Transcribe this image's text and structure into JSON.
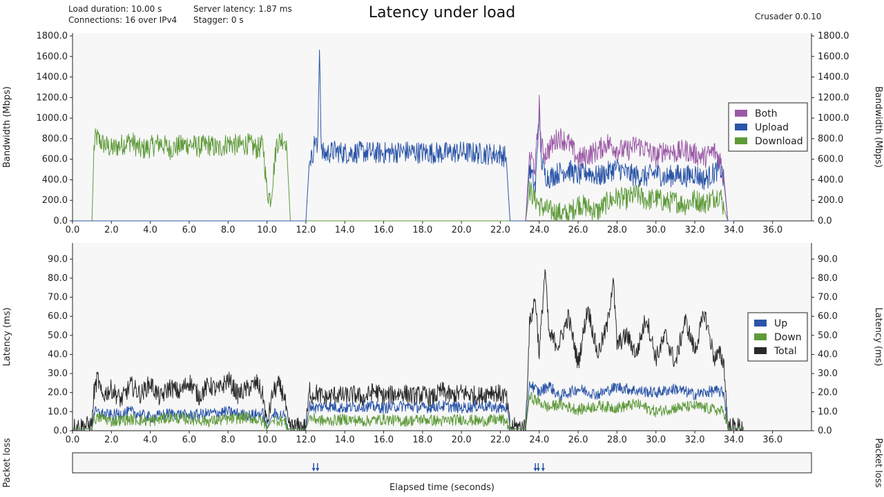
{
  "header": {
    "title": "Latency under load",
    "load_duration": "Load duration: 10.00 s",
    "connections": "Connections: 16 over IPv4",
    "server_latency": "Server latency: 1.87 ms",
    "stagger": "Stagger: 0 s",
    "version": "Crusader 0.0.10"
  },
  "colors": {
    "both": "#9b59a6",
    "upload": "#2b55a8",
    "download": "#5e9a3a",
    "total": "#2a2a2a",
    "plot_bg": "#f7f7f7"
  },
  "chart_data": [
    {
      "type": "line",
      "name": "bandwidth",
      "ylabel": "Bandwidth (Mbps)",
      "xlim": [
        0,
        38
      ],
      "ylim": [
        0,
        1800
      ],
      "x_ticks": [
        "0.0",
        "2.0",
        "4.0",
        "6.0",
        "8.0",
        "10.0",
        "12.0",
        "14.0",
        "16.0",
        "18.0",
        "20.0",
        "22.0",
        "24.0",
        "26.0",
        "28.0",
        "30.0",
        "32.0",
        "34.0",
        "36.0"
      ],
      "y_ticks": [
        "0.0",
        "200.0",
        "400.0",
        "600.0",
        "800.0",
        "1000.0",
        "1200.0",
        "1400.0",
        "1600.0",
        "1800.0"
      ],
      "legend": [
        "Both",
        "Upload",
        "Download"
      ],
      "legend_position": "right",
      "series": [
        {
          "name": "Download",
          "x": [
            0.0,
            1.0,
            1.1,
            1.2,
            1.5,
            2.0,
            2.5,
            3.0,
            3.5,
            4.0,
            4.5,
            5.0,
            5.5,
            6.0,
            6.5,
            7.0,
            7.5,
            8.0,
            8.5,
            9.0,
            9.5,
            9.8,
            10.0,
            10.2,
            10.5,
            10.8,
            11.0,
            11.2,
            11.5,
            12.0,
            22.5,
            23.3,
            23.5,
            24.0,
            24.5,
            25.0,
            25.5,
            26.0,
            26.5,
            27.0,
            27.5,
            28.0,
            28.5,
            29.0,
            29.5,
            30.0,
            30.5,
            31.0,
            31.5,
            32.0,
            32.5,
            33.0,
            33.3,
            33.5,
            33.7,
            34.0
          ],
          "y": [
            0,
            0,
            700,
            820,
            760,
            700,
            740,
            780,
            690,
            720,
            760,
            700,
            730,
            750,
            720,
            740,
            700,
            760,
            730,
            750,
            700,
            740,
            280,
            220,
            760,
            800,
            780,
            0,
            0,
            0,
            0,
            0,
            300,
            150,
            100,
            80,
            60,
            170,
            130,
            90,
            180,
            230,
            210,
            260,
            200,
            220,
            180,
            190,
            160,
            210,
            170,
            230,
            260,
            120,
            0,
            0
          ]
        },
        {
          "name": "Upload",
          "x": [
            0.0,
            12.0,
            12.2,
            12.3,
            12.5,
            12.6,
            12.7,
            12.8,
            13.0,
            13.5,
            14.0,
            15.0,
            16.0,
            17.0,
            18.0,
            19.0,
            20.0,
            21.0,
            22.0,
            22.3,
            22.5,
            23.3,
            23.5,
            23.8,
            24.0,
            24.1,
            24.3,
            24.5,
            25.0,
            25.5,
            26.0,
            26.5,
            27.0,
            27.5,
            28.0,
            28.5,
            29.0,
            29.5,
            30.0,
            30.5,
            31.0,
            31.5,
            32.0,
            32.5,
            33.0,
            33.3,
            33.5,
            33.7,
            34.0
          ],
          "y": [
            0,
            0,
            640,
            600,
            820,
            640,
            1740,
            660,
            650,
            680,
            660,
            670,
            660,
            675,
            665,
            660,
            670,
            655,
            650,
            620,
            0,
            0,
            520,
            320,
            1080,
            600,
            450,
            420,
            470,
            500,
            440,
            480,
            430,
            470,
            520,
            460,
            440,
            430,
            470,
            420,
            450,
            430,
            460,
            400,
            470,
            520,
            380,
            0,
            0
          ]
        },
        {
          "name": "Both",
          "x": [
            23.3,
            23.5,
            23.8,
            24.0,
            24.1,
            24.3,
            24.5,
            25.0,
            25.5,
            26.0,
            26.5,
            27.0,
            27.5,
            28.0,
            28.5,
            29.0,
            29.5,
            30.0,
            30.5,
            31.0,
            31.5,
            32.0,
            32.5,
            33.0,
            33.3,
            33.5,
            33.7
          ],
          "y": [
            0,
            640,
            520,
            1130,
            720,
            650,
            700,
            820,
            760,
            600,
            640,
            680,
            760,
            700,
            680,
            740,
            700,
            620,
            700,
            660,
            690,
            650,
            620,
            680,
            600,
            420,
            0
          ]
        }
      ]
    },
    {
      "type": "line",
      "name": "latency",
      "ylabel": "Latency (ms)",
      "xlim": [
        0,
        38
      ],
      "ylim": [
        0,
        97
      ],
      "x_ticks": [
        "0.0",
        "2.0",
        "4.0",
        "6.0",
        "8.0",
        "10.0",
        "12.0",
        "14.0",
        "16.0",
        "18.0",
        "20.0",
        "22.0",
        "24.0",
        "26.0",
        "28.0",
        "30.0",
        "32.0",
        "34.0",
        "36.0"
      ],
      "y_ticks": [
        "0.0",
        "10.0",
        "20.0",
        "30.0",
        "40.0",
        "50.0",
        "60.0",
        "70.0",
        "80.0",
        "90.0"
      ],
      "legend": [
        "Up",
        "Down",
        "Total"
      ],
      "legend_position": "right",
      "series": [
        {
          "name": "Total",
          "x": [
            0.0,
            1.0,
            1.1,
            1.3,
            1.5,
            2.0,
            2.5,
            3.0,
            3.5,
            4.0,
            4.5,
            5.0,
            5.5,
            6.0,
            6.5,
            7.0,
            7.5,
            8.0,
            8.5,
            9.0,
            9.5,
            9.8,
            10.0,
            10.3,
            10.6,
            10.9,
            11.1,
            11.3,
            12.0,
            12.2,
            12.3,
            12.5,
            13.0,
            13.5,
            14.0,
            14.5,
            15.0,
            15.5,
            16.0,
            16.5,
            17.0,
            17.5,
            18.0,
            18.5,
            19.0,
            19.5,
            20.0,
            20.5,
            21.0,
            21.5,
            22.0,
            22.3,
            22.5,
            23.0,
            23.3,
            23.5,
            23.8,
            24.0,
            24.3,
            24.5,
            25.0,
            25.5,
            26.0,
            26.5,
            27.0,
            27.5,
            27.8,
            28.0,
            28.5,
            29.0,
            29.5,
            30.0,
            30.5,
            31.0,
            31.5,
            32.0,
            32.5,
            33.0,
            33.3,
            33.5,
            33.7,
            34.0,
            34.5
          ],
          "y": [
            2,
            3,
            20,
            28,
            18,
            22,
            16,
            24,
            19,
            25,
            17,
            23,
            20,
            26,
            18,
            24,
            21,
            27,
            19,
            22,
            25,
            18,
            3,
            20,
            24,
            18,
            2,
            2,
            2,
            22,
            18,
            20,
            17,
            19,
            18,
            19,
            17,
            21,
            18,
            19,
            20,
            18,
            19,
            17,
            21,
            18,
            20,
            19,
            18,
            21,
            19,
            18,
            2,
            2,
            2,
            55,
            70,
            40,
            85,
            50,
            45,
            60,
            35,
            65,
            40,
            55,
            80,
            45,
            50,
            40,
            60,
            38,
            50,
            35,
            58,
            42,
            62,
            38,
            40,
            35,
            2,
            2,
            2
          ],
          "jitter": 5
        },
        {
          "name": "Up",
          "x": [
            0.0,
            1.0,
            1.1,
            1.5,
            2.0,
            3.0,
            4.0,
            5.0,
            6.0,
            7.0,
            8.0,
            9.0,
            9.8,
            10.0,
            10.3,
            10.9,
            11.1,
            12.0,
            12.2,
            12.5,
            13.0,
            14.0,
            15.0,
            16.0,
            17.0,
            18.0,
            19.0,
            20.0,
            21.0,
            22.0,
            22.3,
            22.5,
            23.3,
            23.5,
            24.0,
            24.5,
            25.0,
            26.0,
            27.0,
            28.0,
            29.0,
            30.0,
            31.0,
            32.0,
            33.0,
            33.5,
            33.7,
            34.5
          ],
          "y": [
            1,
            1,
            10,
            9,
            8,
            10,
            7,
            9,
            8,
            9,
            10,
            8,
            9,
            1,
            9,
            8,
            1,
            1,
            13,
            12,
            13,
            12,
            13,
            12,
            13,
            12,
            13,
            12,
            13,
            12,
            12,
            1,
            1,
            25,
            20,
            24,
            18,
            22,
            19,
            23,
            21,
            20,
            22,
            19,
            21,
            20,
            1,
            1
          ],
          "jitter": 3
        },
        {
          "name": "Down",
          "x": [
            0.0,
            1.0,
            1.1,
            1.5,
            2.0,
            3.0,
            4.0,
            5.0,
            6.0,
            7.0,
            8.0,
            9.0,
            9.8,
            10.0,
            10.3,
            10.9,
            11.1,
            12.0,
            12.2,
            12.5,
            13.0,
            14.0,
            15.0,
            16.0,
            17.0,
            18.0,
            19.0,
            20.0,
            21.0,
            22.0,
            22.3,
            22.5,
            23.3,
            23.5,
            24.0,
            24.5,
            25.0,
            26.0,
            27.0,
            28.0,
            29.0,
            30.0,
            31.0,
            32.0,
            33.0,
            33.5,
            33.7,
            34.5
          ],
          "y": [
            1,
            1,
            6,
            7,
            5,
            6,
            5,
            7,
            6,
            5,
            6,
            7,
            5,
            1,
            6,
            5,
            1,
            1,
            7,
            6,
            5,
            6,
            5,
            6,
            5,
            6,
            5,
            6,
            5,
            6,
            5,
            1,
            1,
            18,
            15,
            12,
            14,
            11,
            13,
            12,
            14,
            10,
            12,
            13,
            11,
            10,
            1,
            1
          ],
          "jitter": 3
        }
      ]
    },
    {
      "type": "scatter",
      "name": "packet_loss",
      "ylabel": "Packet loss",
      "xlabel": "Elapsed time (seconds)",
      "xlim": [
        0,
        38
      ],
      "markers": [
        {
          "series": "Upload",
          "x": 12.4
        },
        {
          "series": "Upload",
          "x": 12.6
        },
        {
          "series": "Upload",
          "x": 23.8
        },
        {
          "series": "Upload",
          "x": 23.95
        },
        {
          "series": "Upload",
          "x": 24.2
        }
      ]
    }
  ]
}
